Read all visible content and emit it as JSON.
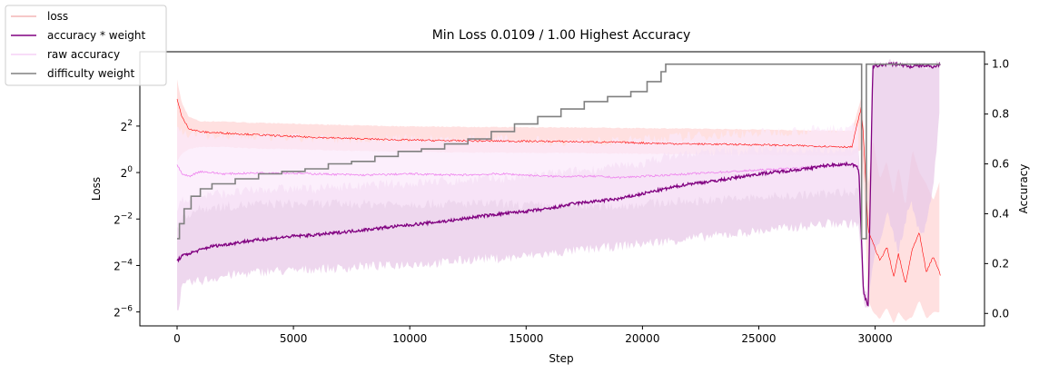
{
  "chart_data": {
    "type": "line",
    "title": "Min Loss 0.0109 / 1.00 Highest Accuracy",
    "xlabel": "Step",
    "ylabel_left": "Loss",
    "ylabel_right": "Accuracy",
    "xlim": [
      -1600,
      34700
    ],
    "xticks": [
      0,
      5000,
      10000,
      15000,
      20000,
      25000,
      30000
    ],
    "xtick_labels": [
      "0",
      "5000",
      "10000",
      "15000",
      "20000",
      "25000",
      "30000"
    ],
    "yscale_left": "log2",
    "ylim_left_log2": [
      -6.6,
      5.2
    ],
    "yticks_left_log2": [
      -6,
      -4,
      -2,
      0,
      2
    ],
    "ytick_left_base": "2",
    "ytick_left_exponents": [
      "−6",
      "−4",
      "−2",
      "0",
      "2"
    ],
    "ylim_right": [
      -0.05,
      1.05
    ],
    "yticks_right": [
      0.0,
      0.2,
      0.4,
      0.6,
      0.8,
      1.0
    ],
    "ytick_right_labels": [
      "0.0",
      "0.2",
      "0.4",
      "0.6",
      "0.8",
      "1.0"
    ],
    "legend_position": "upper-left-outside",
    "legend": [
      "loss",
      "accuracy * weight",
      "raw accuracy",
      "difficulty weight"
    ],
    "colors": {
      "loss": "#ff0000",
      "loss_band": "#ffcccc",
      "loss_legend": "#f4b6b6",
      "accuracy_weight": "#800080",
      "accuracy_band": "#e8c9e8",
      "raw_accuracy": "#ee82ee",
      "raw_accuracy_band": "#fbe8fb",
      "raw_accuracy_legend": "#f6d2f6",
      "difficulty_weight": "#808080"
    },
    "series": [
      {
        "name": "loss",
        "axis": "left",
        "x": [
          0,
          200,
          500,
          1000,
          2000,
          3000,
          5000,
          7000,
          9000,
          11000,
          13000,
          15000,
          17000,
          19000,
          21000,
          23000,
          25000,
          27000,
          29000,
          29400,
          29500,
          29700,
          29900,
          30200,
          30500,
          30800,
          31000,
          31300,
          31600,
          31900,
          32200,
          32500,
          32800
        ],
        "log2_values": [
          3.2,
          2.4,
          1.9,
          1.75,
          1.7,
          1.65,
          1.55,
          1.48,
          1.42,
          1.38,
          1.36,
          1.35,
          1.33,
          1.3,
          1.25,
          1.22,
          1.2,
          1.15,
          1.1,
          2.8,
          1.5,
          -2.5,
          -3.0,
          -3.8,
          -3.2,
          -4.5,
          -3.5,
          -4.8,
          -3.3,
          -2.6,
          -4.3,
          -3.6,
          -4.4
        ],
        "band_log2_low": [
          0.5,
          0.8,
          1.0,
          1.1,
          1.1,
          1.05,
          1.0,
          0.95,
          0.9,
          0.88,
          0.86,
          0.85,
          0.84,
          0.82,
          0.8,
          0.78,
          0.76,
          0.74,
          0.72,
          1.0,
          -0.5,
          -5.5,
          -6.0,
          -6.3,
          -5.8,
          -6.5,
          -6.0,
          -6.4,
          -6.2,
          -5.5,
          -6.3,
          -6.0,
          -6.0
        ],
        "band_log2_high": [
          4.0,
          3.0,
          2.4,
          2.2,
          2.2,
          2.15,
          2.1,
          2.05,
          2.0,
          1.98,
          1.96,
          1.95,
          1.94,
          1.92,
          1.9,
          1.88,
          1.85,
          1.82,
          1.8,
          3.2,
          2.0,
          -0.5,
          1.5,
          -0.3,
          0.5,
          -1.0,
          0.3,
          -1.5,
          1.0,
          0.0,
          -0.5,
          -1.2,
          -0.3
        ]
      },
      {
        "name": "accuracy * weight",
        "axis": "right",
        "x": [
          0,
          200,
          500,
          1000,
          1500,
          2000,
          3000,
          4000,
          5000,
          6000,
          7000,
          8000,
          9000,
          10000,
          11000,
          12000,
          13000,
          14000,
          15000,
          16000,
          17000,
          18000,
          19000,
          20000,
          21000,
          22000,
          23000,
          24000,
          25000,
          26000,
          27000,
          28000,
          29000,
          29300,
          29500,
          29700,
          29900,
          30500,
          31000,
          31500,
          32000,
          32500,
          32800
        ],
        "values": [
          0.21,
          0.23,
          0.24,
          0.255,
          0.27,
          0.275,
          0.29,
          0.3,
          0.31,
          0.315,
          0.325,
          0.335,
          0.345,
          0.355,
          0.365,
          0.375,
          0.39,
          0.4,
          0.41,
          0.42,
          0.44,
          0.45,
          0.46,
          0.48,
          0.5,
          0.52,
          0.53,
          0.545,
          0.56,
          0.57,
          0.58,
          0.595,
          0.6,
          0.58,
          0.08,
          0.03,
          0.99,
          1.0,
          1.0,
          0.99,
          0.995,
          0.99,
          1.0
        ],
        "band_low": [
          0.0,
          0.1,
          0.12,
          0.13,
          0.14,
          0.15,
          0.16,
          0.17,
          0.17,
          0.18,
          0.18,
          0.19,
          0.19,
          0.2,
          0.2,
          0.21,
          0.22,
          0.22,
          0.23,
          0.24,
          0.25,
          0.26,
          0.27,
          0.28,
          0.29,
          0.3,
          0.31,
          0.32,
          0.33,
          0.34,
          0.35,
          0.36,
          0.36,
          0.36,
          0.03,
          0.02,
          0.2,
          0.4,
          0.25,
          0.45,
          0.3,
          0.5,
          0.85
        ],
        "band_high": [
          0.42,
          0.45,
          0.46,
          0.47,
          0.48,
          0.48,
          0.49,
          0.5,
          0.5,
          0.5,
          0.51,
          0.51,
          0.52,
          0.52,
          0.53,
          0.53,
          0.54,
          0.54,
          0.55,
          0.56,
          0.57,
          0.58,
          0.59,
          0.6,
          0.63,
          0.64,
          0.65,
          0.65,
          0.66,
          0.66,
          0.66,
          0.66,
          0.66,
          0.66,
          0.1,
          0.05,
          1.0,
          1.0,
          1.0,
          1.0,
          1.0,
          1.0,
          1.0
        ]
      },
      {
        "name": "raw accuracy",
        "axis": "right",
        "x": [
          0,
          200,
          500,
          1000,
          2000,
          4000,
          6000,
          8000,
          10000,
          12000,
          14000,
          16000,
          18000,
          19000,
          20000,
          22000,
          24000,
          26000,
          28000,
          29000,
          29300
        ],
        "values": [
          0.6,
          0.56,
          0.55,
          0.57,
          0.56,
          0.565,
          0.56,
          0.555,
          0.56,
          0.555,
          0.56,
          0.55,
          0.55,
          0.545,
          0.55,
          0.56,
          0.57,
          0.58,
          0.59,
          0.6,
          0.59
        ],
        "band_low": [
          0.35,
          0.38,
          0.4,
          0.42,
          0.43,
          0.44,
          0.44,
          0.44,
          0.44,
          0.44,
          0.44,
          0.43,
          0.43,
          0.43,
          0.44,
          0.45,
          0.46,
          0.47,
          0.48,
          0.49,
          0.49
        ],
        "band_high": [
          0.75,
          0.73,
          0.72,
          0.72,
          0.71,
          0.71,
          0.7,
          0.7,
          0.7,
          0.7,
          0.7,
          0.69,
          0.69,
          0.69,
          0.7,
          0.71,
          0.72,
          0.73,
          0.74,
          0.75,
          0.75
        ]
      },
      {
        "name": "difficulty weight",
        "axis": "right",
        "x": [
          0,
          100,
          300,
          600,
          1000,
          1500,
          2500,
          3500,
          4500,
          5500,
          6500,
          7500,
          8500,
          9500,
          10500,
          11500,
          12500,
          13500,
          14500,
          15500,
          16500,
          17500,
          18500,
          19500,
          20200,
          20800,
          21000,
          22000,
          24000,
          26000,
          28000,
          29400,
          29420,
          29600,
          29620,
          30000,
          31000,
          32000,
          32800
        ],
        "values": [
          0.3,
          0.36,
          0.42,
          0.47,
          0.5,
          0.52,
          0.54,
          0.56,
          0.57,
          0.58,
          0.6,
          0.61,
          0.63,
          0.65,
          0.66,
          0.68,
          0.7,
          0.73,
          0.76,
          0.79,
          0.82,
          0.85,
          0.87,
          0.89,
          0.93,
          0.97,
          1.0,
          1.0,
          1.0,
          1.0,
          1.0,
          1.0,
          0.3,
          0.3,
          1.0,
          1.0,
          1.0,
          1.0,
          1.0
        ]
      }
    ]
  }
}
